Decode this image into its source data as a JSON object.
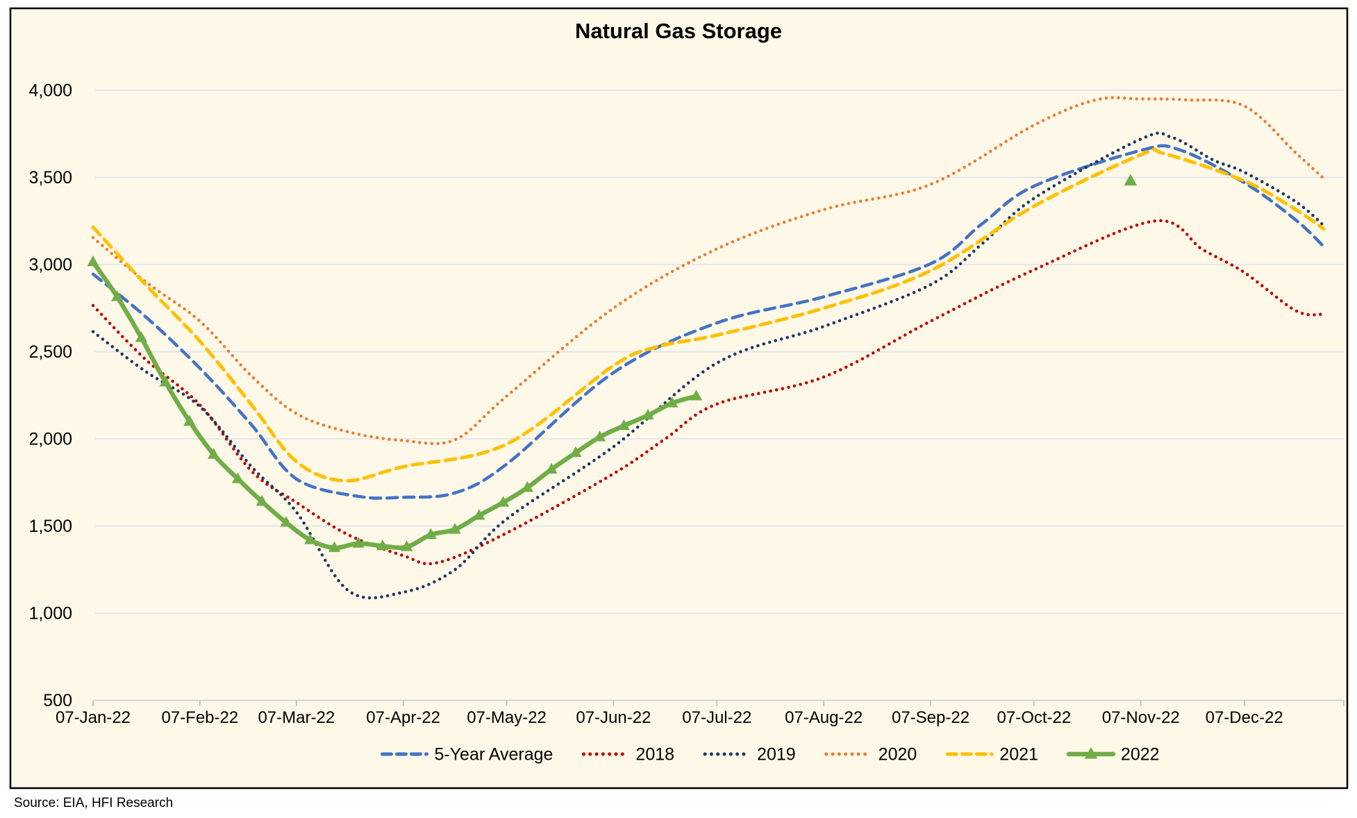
{
  "title": "Natural Gas Storage",
  "source": "Source: EIA, HFI Research",
  "colors": {
    "background": "#fdf8e8",
    "border": "#000000",
    "gridline": "#dbe2ec",
    "axis": "#c9d2dc",
    "tick": "#b4bdc8",
    "text": "#000000"
  },
  "chart_data": {
    "type": "line",
    "title": "Natural Gas Storage",
    "xlabel": "",
    "ylabel": "",
    "grid": true,
    "legend_position": "bottom",
    "y_axis": {
      "min": 500,
      "max": 4000,
      "step": 500,
      "ticks": [
        4000,
        3500,
        3000,
        2500,
        2000,
        1500,
        1000,
        500
      ]
    },
    "x_ticks": [
      {
        "date": "2022-01-07",
        "label": "07-Jan-22"
      },
      {
        "date": "2022-02-07",
        "label": "07-Feb-22"
      },
      {
        "date": "2022-03-07",
        "label": "07-Mar-22"
      },
      {
        "date": "2022-04-07",
        "label": "07-Apr-22"
      },
      {
        "date": "2022-05-07",
        "label": "07-May-22"
      },
      {
        "date": "2022-06-07",
        "label": "07-Jun-22"
      },
      {
        "date": "2022-07-07",
        "label": "07-Jul-22"
      },
      {
        "date": "2022-08-07",
        "label": "07-Aug-22"
      },
      {
        "date": "2022-09-07",
        "label": "07-Sep-22"
      },
      {
        "date": "2022-10-07",
        "label": "07-Oct-22"
      },
      {
        "date": "2022-11-07",
        "label": "07-Nov-22"
      },
      {
        "date": "2022-12-07",
        "label": "07-Dec-22"
      }
    ],
    "series": [
      {
        "name": "5-Year Average",
        "color": "#4472C4",
        "style": "dashed",
        "width": 4.5,
        "marker": null,
        "points": [
          [
            "2022-01-07",
            2945
          ],
          [
            "2022-01-22",
            2705
          ],
          [
            "2022-02-07",
            2405
          ],
          [
            "2022-02-22",
            2080
          ],
          [
            "2022-03-07",
            1770
          ],
          [
            "2022-03-25",
            1670
          ],
          [
            "2022-04-07",
            1665
          ],
          [
            "2022-04-22",
            1690
          ],
          [
            "2022-05-07",
            1855
          ],
          [
            "2022-06-07",
            2380
          ],
          [
            "2022-07-07",
            2665
          ],
          [
            "2022-08-07",
            2815
          ],
          [
            "2022-09-07",
            3005
          ],
          [
            "2022-09-22",
            3235
          ],
          [
            "2022-10-07",
            3450
          ],
          [
            "2022-11-07",
            3655
          ],
          [
            "2022-11-18",
            3660
          ],
          [
            "2022-12-07",
            3470
          ],
          [
            "2022-12-22",
            3255
          ],
          [
            "2022-12-30",
            3105
          ]
        ]
      },
      {
        "name": "2018",
        "color": "#C00000",
        "style": "dotted",
        "width": 4.5,
        "marker": null,
        "points": [
          [
            "2022-01-07",
            2765
          ],
          [
            "2022-01-22",
            2460
          ],
          [
            "2022-02-07",
            2195
          ],
          [
            "2022-02-22",
            1815
          ],
          [
            "2022-03-07",
            1635
          ],
          [
            "2022-03-22",
            1450
          ],
          [
            "2022-04-07",
            1330
          ],
          [
            "2022-04-17",
            1290
          ],
          [
            "2022-05-07",
            1460
          ],
          [
            "2022-06-07",
            1800
          ],
          [
            "2022-06-22",
            2000
          ],
          [
            "2022-07-07",
            2200
          ],
          [
            "2022-08-07",
            2355
          ],
          [
            "2022-09-07",
            2675
          ],
          [
            "2022-10-07",
            2970
          ],
          [
            "2022-11-11",
            3250
          ],
          [
            "2022-11-25",
            3085
          ],
          [
            "2022-12-07",
            2955
          ],
          [
            "2022-12-22",
            2735
          ],
          [
            "2022-12-30",
            2715
          ]
        ]
      },
      {
        "name": "2019",
        "color": "#1F3864",
        "style": "dotted",
        "width": 4.5,
        "marker": null,
        "points": [
          [
            "2022-01-07",
            2615
          ],
          [
            "2022-01-22",
            2390
          ],
          [
            "2022-02-07",
            2185
          ],
          [
            "2022-02-22",
            1840
          ],
          [
            "2022-03-07",
            1580
          ],
          [
            "2022-03-22",
            1130
          ],
          [
            "2022-04-07",
            1120
          ],
          [
            "2022-04-22",
            1250
          ],
          [
            "2022-05-07",
            1540
          ],
          [
            "2022-06-07",
            1955
          ],
          [
            "2022-07-07",
            2435
          ],
          [
            "2022-08-07",
            2645
          ],
          [
            "2022-09-07",
            2885
          ],
          [
            "2022-09-22",
            3120
          ],
          [
            "2022-10-07",
            3380
          ],
          [
            "2022-11-07",
            3720
          ],
          [
            "2022-11-16",
            3730
          ],
          [
            "2022-11-28",
            3600
          ],
          [
            "2022-12-07",
            3530
          ],
          [
            "2022-12-22",
            3360
          ],
          [
            "2022-12-30",
            3225
          ]
        ]
      },
      {
        "name": "2020",
        "color": "#ED7D31",
        "style": "dotted",
        "width": 4.5,
        "marker": null,
        "points": [
          [
            "2022-01-07",
            3155
          ],
          [
            "2022-01-22",
            2905
          ],
          [
            "2022-02-07",
            2675
          ],
          [
            "2022-02-22",
            2360
          ],
          [
            "2022-03-07",
            2145
          ],
          [
            "2022-03-22",
            2040
          ],
          [
            "2022-04-07",
            1990
          ],
          [
            "2022-04-22",
            1995
          ],
          [
            "2022-05-07",
            2245
          ],
          [
            "2022-06-07",
            2750
          ],
          [
            "2022-07-07",
            3090
          ],
          [
            "2022-08-07",
            3315
          ],
          [
            "2022-09-07",
            3460
          ],
          [
            "2022-10-07",
            3800
          ],
          [
            "2022-10-25",
            3945
          ],
          [
            "2022-11-07",
            3950
          ],
          [
            "2022-11-20",
            3945
          ],
          [
            "2022-12-07",
            3910
          ],
          [
            "2022-12-22",
            3640
          ],
          [
            "2022-12-30",
            3495
          ]
        ]
      },
      {
        "name": "2021",
        "color": "#FFC000",
        "style": "dashed",
        "width": 5,
        "marker": null,
        "points": [
          [
            "2022-01-07",
            3215
          ],
          [
            "2022-01-22",
            2890
          ],
          [
            "2022-02-07",
            2560
          ],
          [
            "2022-02-22",
            2195
          ],
          [
            "2022-03-07",
            1870
          ],
          [
            "2022-03-21",
            1760
          ],
          [
            "2022-04-07",
            1840
          ],
          [
            "2022-05-07",
            1970
          ],
          [
            "2022-06-07",
            2420
          ],
          [
            "2022-06-20",
            2530
          ],
          [
            "2022-07-07",
            2595
          ],
          [
            "2022-08-07",
            2750
          ],
          [
            "2022-09-07",
            2965
          ],
          [
            "2022-10-07",
            3335
          ],
          [
            "2022-11-07",
            3630
          ],
          [
            "2022-11-14",
            3635
          ],
          [
            "2022-12-07",
            3480
          ],
          [
            "2022-12-22",
            3315
          ],
          [
            "2022-12-30",
            3205
          ]
        ]
      },
      {
        "name": "2022",
        "color": "#70AD47",
        "style": "solid",
        "width": 6.5,
        "marker": "triangle",
        "points": [
          [
            "2022-01-07",
            3015
          ],
          [
            "2022-01-14",
            2815
          ],
          [
            "2022-01-21",
            2580
          ],
          [
            "2022-01-28",
            2325
          ],
          [
            "2022-02-04",
            2100
          ],
          [
            "2022-02-11",
            1910
          ],
          [
            "2022-02-18",
            1770
          ],
          [
            "2022-02-25",
            1640
          ],
          [
            "2022-03-04",
            1520
          ],
          [
            "2022-03-11",
            1420
          ],
          [
            "2022-03-18",
            1375
          ],
          [
            "2022-03-25",
            1400
          ],
          [
            "2022-04-01",
            1385
          ],
          [
            "2022-04-08",
            1380
          ],
          [
            "2022-04-15",
            1450
          ],
          [
            "2022-04-22",
            1480
          ],
          [
            "2022-04-29",
            1560
          ],
          [
            "2022-05-06",
            1635
          ],
          [
            "2022-05-13",
            1720
          ],
          [
            "2022-05-20",
            1825
          ],
          [
            "2022-05-27",
            1920
          ],
          [
            "2022-06-03",
            2010
          ],
          [
            "2022-06-10",
            2075
          ],
          [
            "2022-06-17",
            2135
          ],
          [
            "2022-06-24",
            2205
          ],
          [
            "2022-07-01",
            2245
          ]
        ],
        "isolated_points": [
          [
            "2022-11-04",
            3480
          ]
        ]
      }
    ]
  }
}
